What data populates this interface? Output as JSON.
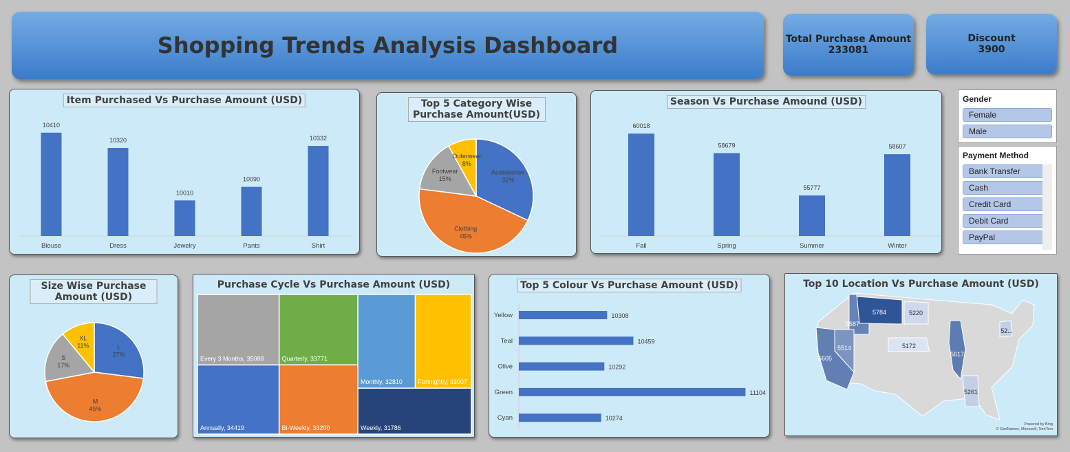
{
  "header": {
    "title": "Shopping Trends Analysis Dashboard"
  },
  "kpis": [
    {
      "label": "Total Purchase Amount",
      "value": 233081
    },
    {
      "label": "Discount",
      "value": 3900
    }
  ],
  "slicers": [
    {
      "title": "Gender",
      "items": [
        "Female",
        "Male"
      ]
    },
    {
      "title": "Payment Method",
      "items": [
        "Bank Transfer",
        "Cash",
        "Credit Card",
        "Debit Card",
        "PayPal"
      ]
    }
  ],
  "chart_data": [
    {
      "type": "bar",
      "title": "Item Purchased Vs Purchase Amount (USD)",
      "categories": [
        "Blouse",
        "Dress",
        "Jewelry",
        "Pants",
        "Shirt"
      ],
      "values": [
        10410,
        10320,
        10010,
        10090,
        10332
      ],
      "color": "#4472c4",
      "ylim": [
        9800,
        10450
      ]
    },
    {
      "type": "pie",
      "title": "Top 5 Category Wise Purchase Amount(USD)",
      "categories": [
        "Accessories",
        "Clothing",
        "Footwear",
        "Outerwear"
      ],
      "values": [
        32,
        45,
        15,
        8
      ],
      "value_labels": [
        "32%",
        "45%",
        "15%",
        "8%"
      ],
      "colors": [
        "#4472c4",
        "#ed7d31",
        "#a5a5a5",
        "#ffc000"
      ]
    },
    {
      "type": "bar",
      "title": "Season Vs Purchase Amound (USD)",
      "categories": [
        "Fall",
        "Spring",
        "Summer",
        "Winter"
      ],
      "values": [
        60018,
        58679,
        55777,
        58607
      ],
      "color": "#4472c4",
      "ylim": [
        53000,
        60500
      ]
    },
    {
      "type": "pie",
      "title": "Size Wise Purchase Amount (USD)",
      "categories": [
        "L",
        "M",
        "S",
        "XL"
      ],
      "values": [
        27,
        45,
        17,
        11
      ],
      "value_labels": [
        "27%",
        "45%",
        "17%",
        "11%"
      ],
      "colors": [
        "#4472c4",
        "#ed7d31",
        "#a5a5a5",
        "#ffc000"
      ]
    },
    {
      "type": "treemap",
      "title": "Purchase Cycle Vs Purchase Amount (USD)",
      "categories": [
        "Every 3 Months",
        "Quarterly",
        "Monthly",
        "Fortnightly",
        "Annually",
        "Bi-Weekly",
        "Weekly"
      ],
      "values": [
        35088,
        33771,
        32810,
        32007,
        34419,
        33200,
        31786
      ],
      "value_labels": [
        "Every 3 Months, 35088",
        "Quarterly, 33771",
        "Monthly, 32810",
        "Fortnightly, 32007",
        "Annually, 34419",
        "Bi-Weekly, 33200",
        "Weekly, 31786"
      ],
      "colors": [
        "#a5a5a5",
        "#70ad47",
        "#5b9bd5",
        "#ffc000",
        "#4472c4",
        "#ed7d31",
        "#264478"
      ]
    },
    {
      "type": "hbar",
      "title": "Top 5 Colour Vs Purchase Amount (USD)",
      "categories": [
        "Yellow",
        "Teal",
        "Olive",
        "Green",
        "Cyan"
      ],
      "values": [
        10308,
        10459,
        10292,
        11104,
        10274
      ],
      "color": "#4472c4",
      "xlim": [
        9800,
        11150
      ]
    },
    {
      "type": "map",
      "title": "Top 10 Location Vs Purchase Amount (USD)",
      "values": [
        5784,
        5220,
        5587,
        5514,
        5605,
        5172,
        5617,
        5261,
        null
      ],
      "value_labels": [
        null,
        null,
        null,
        null,
        null,
        null,
        null,
        null,
        "52..."
      ],
      "attribution": [
        "Powered by Bing",
        "© GeoNames, Microsoft, TomTom"
      ]
    }
  ]
}
